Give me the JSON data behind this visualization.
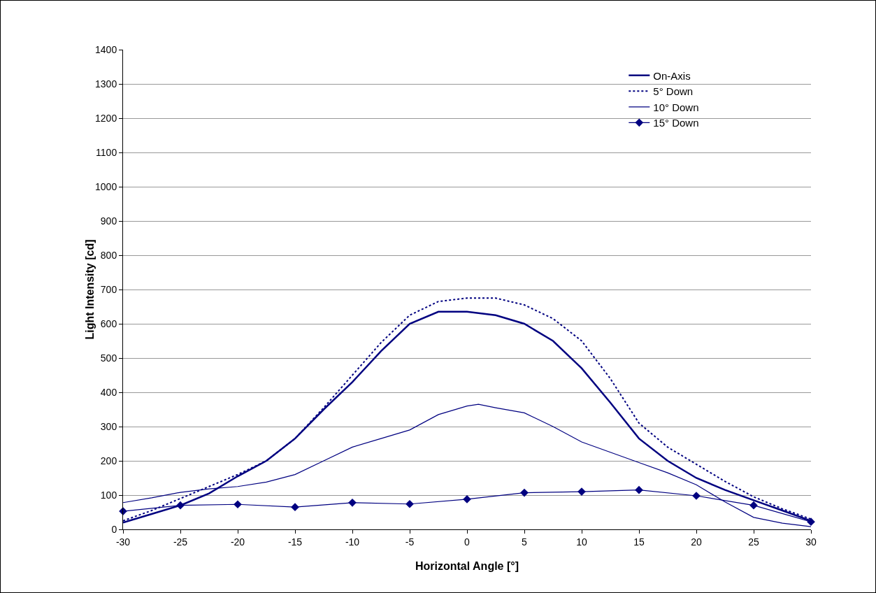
{
  "chart_data": {
    "type": "line",
    "xlabel": "Horizontal Angle [°]",
    "ylabel": "Light Intensity [cd]",
    "xlim": [
      -30,
      30
    ],
    "xticks": [
      -30,
      -25,
      -20,
      -15,
      -10,
      -5,
      0,
      5,
      10,
      15,
      20,
      25,
      30
    ],
    "ylim": [
      0,
      1400
    ],
    "yticks": [
      0,
      100,
      200,
      300,
      400,
      500,
      600,
      700,
      800,
      900,
      1000,
      1100,
      1200,
      1300,
      1400
    ],
    "grid": "y",
    "legend": "top right",
    "series": [
      {
        "name": "On-Axis",
        "color": "#000080",
        "line_style": "solid",
        "marker": "none",
        "x": [
          -30,
          -27.5,
          -25,
          -22.5,
          -20,
          -17.5,
          -15,
          -12.5,
          -10,
          -7.5,
          -5,
          -2.5,
          0,
          2.5,
          5,
          7.5,
          10,
          12.5,
          15,
          17.5,
          20,
          22.5,
          25,
          27.5,
          30
        ],
        "values": [
          20,
          45,
          70,
          105,
          155,
          200,
          265,
          350,
          430,
          520,
          600,
          635,
          635,
          625,
          600,
          550,
          470,
          370,
          265,
          200,
          150,
          115,
          85,
          55,
          25
        ]
      },
      {
        "name": "5° Down",
        "color": "#000080",
        "line_style": "dotted",
        "marker": "none",
        "x": [
          -30,
          -27.5,
          -25,
          -22.5,
          -20,
          -17.5,
          -15,
          -12.5,
          -10,
          -7.5,
          -5,
          -2.5,
          0,
          2.5,
          5,
          7.5,
          10,
          12.5,
          15,
          17.5,
          20,
          22.5,
          25,
          27.5,
          30
        ],
        "values": [
          25,
          55,
          90,
          125,
          160,
          200,
          265,
          355,
          450,
          545,
          625,
          665,
          675,
          675,
          655,
          615,
          550,
          440,
          310,
          240,
          190,
          140,
          95,
          60,
          30
        ]
      },
      {
        "name": "10° Down",
        "color": "#000080",
        "line_style": "solid",
        "marker": "none",
        "x": [
          -30,
          -27.5,
          -25,
          -22.5,
          -20,
          -17.5,
          -15,
          -12.5,
          -10,
          -7.5,
          -5,
          -2.5,
          0,
          1,
          2.5,
          5,
          7.5,
          10,
          12.5,
          15,
          17.5,
          20,
          22.5,
          25,
          27.5,
          30
        ],
        "values": [
          78,
          92,
          108,
          118,
          125,
          138,
          160,
          200,
          240,
          265,
          290,
          335,
          360,
          365,
          355,
          340,
          300,
          255,
          225,
          195,
          165,
          130,
          80,
          35,
          18,
          8
        ]
      },
      {
        "name": "15° Down",
        "color": "#000080",
        "line_style": "solid",
        "marker": "diamond",
        "x": [
          -30,
          -25,
          -20,
          -15,
          -10,
          -5,
          0,
          5,
          10,
          15,
          20,
          25,
          30
        ],
        "values": [
          53,
          70,
          73,
          65,
          78,
          74,
          88,
          107,
          110,
          115,
          98,
          70,
          22
        ]
      }
    ]
  }
}
